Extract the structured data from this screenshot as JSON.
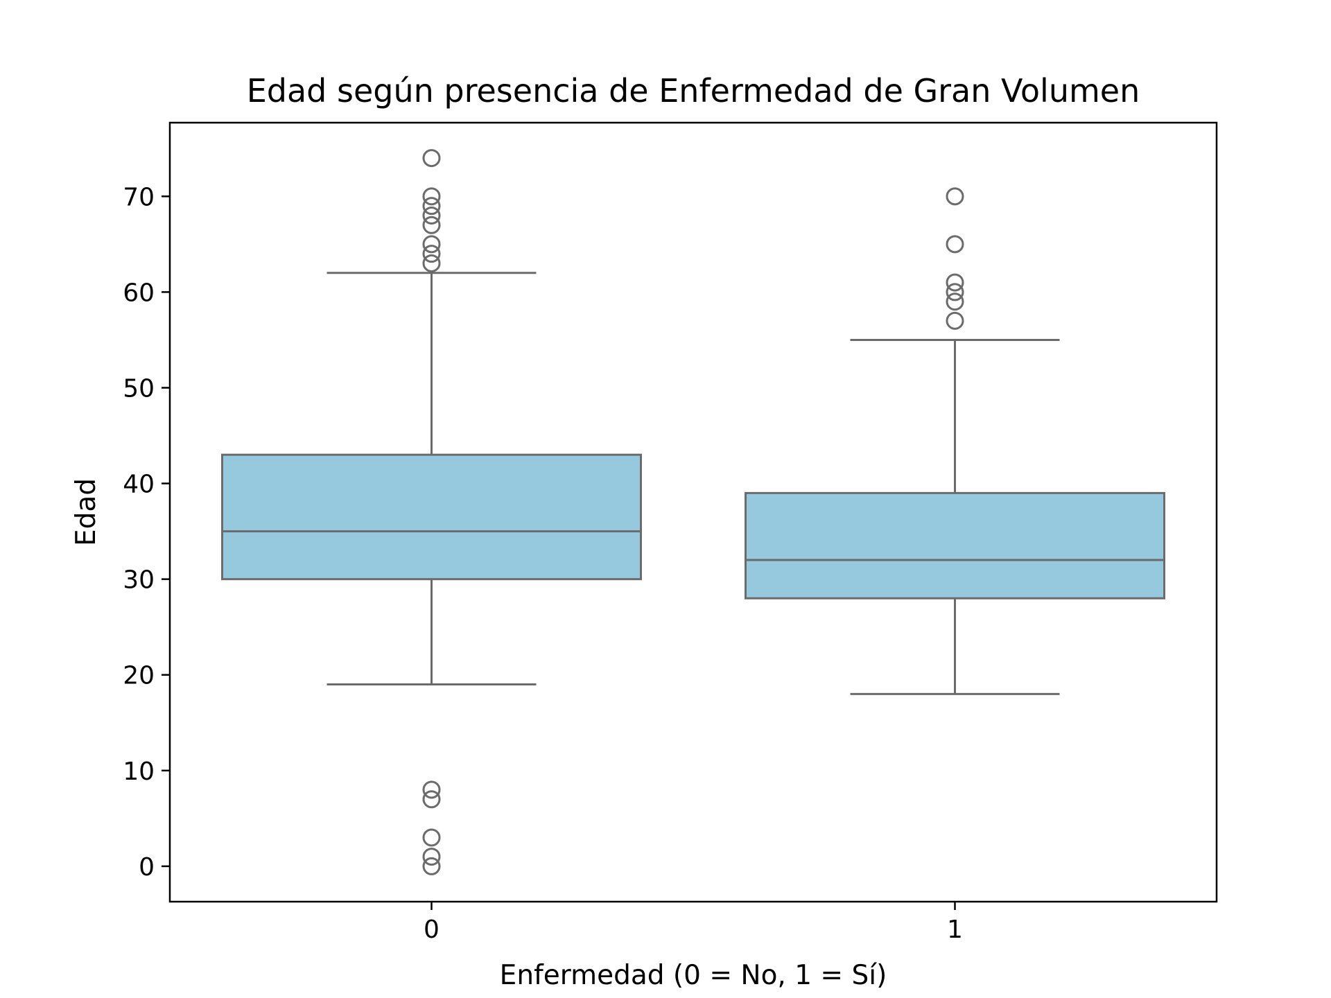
{
  "chart_data": {
    "type": "boxplot",
    "title": "Edad según presencia de Enfermedad de Gran Volumen",
    "xlabel": "Enfermedad (0 = No, 1 = Sí)",
    "ylabel": "Edad",
    "categories": [
      "0",
      "1"
    ],
    "ylim": [
      -3.7,
      77.7
    ],
    "yticks": [
      0,
      10,
      20,
      30,
      40,
      50,
      60,
      70
    ],
    "grid": false,
    "colors": {
      "box_fill": "#96c9de",
      "line": "#6b6b6b",
      "axis": "#000000"
    },
    "boxes": [
      {
        "category": "0",
        "q1": 30,
        "median": 35,
        "q3": 43,
        "whisker_low": 19,
        "whisker_high": 62,
        "outliers": [
          74,
          70,
          69,
          68,
          67,
          65,
          64,
          63,
          8,
          7,
          3,
          1,
          0
        ]
      },
      {
        "category": "1",
        "q1": 28,
        "median": 32,
        "q3": 39,
        "whisker_low": 18,
        "whisker_high": 55,
        "outliers": [
          70,
          65,
          61,
          60,
          59,
          57
        ]
      }
    ]
  }
}
